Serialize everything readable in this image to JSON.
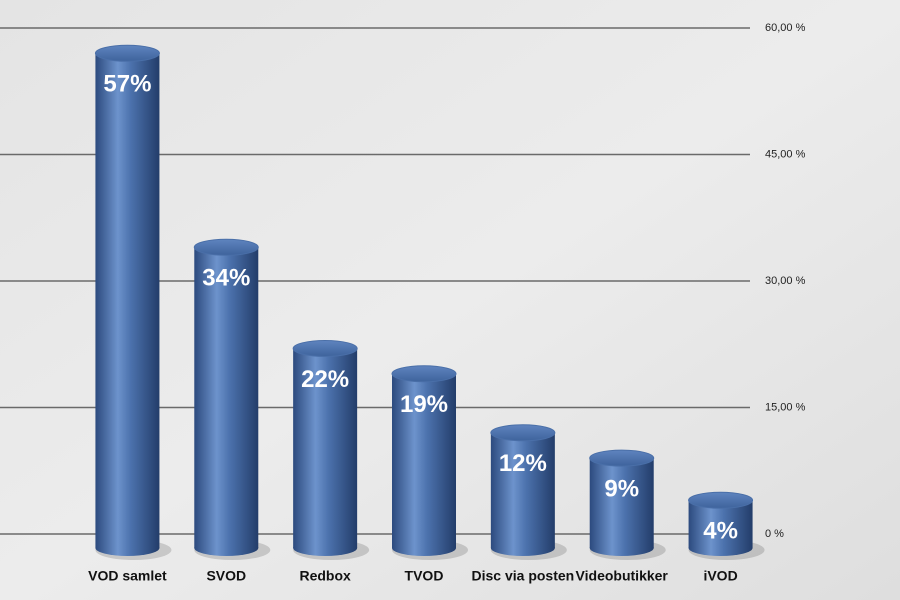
{
  "chart_data": {
    "type": "bar",
    "categories": [
      "VOD samlet",
      "SVOD",
      "Redbox",
      "TVOD",
      "Disc via posten",
      "Videobutikker",
      "iVOD"
    ],
    "values": [
      57,
      34,
      22,
      19,
      12,
      9,
      4
    ],
    "value_labels": [
      "57%",
      "34%",
      "22%",
      "19%",
      "12%",
      "9%",
      "4%"
    ],
    "color": "#4a6fa8",
    "ylim": [
      0,
      60
    ],
    "yticks": [
      {
        "value": 0,
        "label": "0 %"
      },
      {
        "value": 15,
        "label": "15,00 %"
      },
      {
        "value": 30,
        "label": "30,00 %"
      },
      {
        "value": 45,
        "label": "45,00 %"
      },
      {
        "value": 60,
        "label": "60,00 %"
      }
    ],
    "grid": true
  }
}
